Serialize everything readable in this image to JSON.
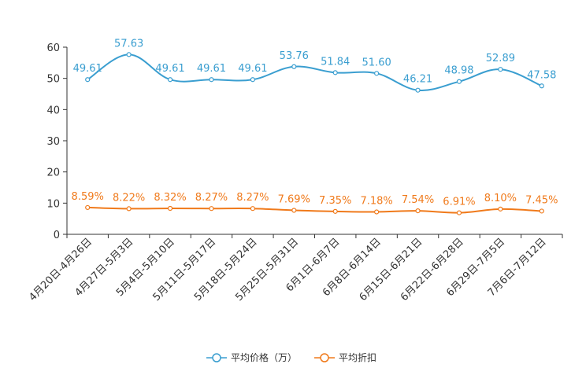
{
  "chart_data": {
    "type": "line",
    "title": "",
    "xlabel": "",
    "ylabel": "",
    "ylim": [
      0,
      60
    ],
    "yticks": [
      0,
      10,
      20,
      30,
      40,
      50,
      60
    ],
    "categories": [
      "4月20日-4月26日",
      "4月27日-5月3日",
      "5月4日-5月10日",
      "5月11日-5月17日",
      "5月18日-5月24日",
      "5月25日-5月31日",
      "6月1日-6月7日",
      "6月8日-6月14日",
      "6月15日-6月21日",
      "6月22日-6月28日",
      "6月29日-7月5日",
      "7月6日-7月12日"
    ],
    "series": [
      {
        "name": "平均价格（万）",
        "color": "#3a9ed0",
        "values": [
          49.61,
          57.63,
          49.61,
          49.61,
          49.61,
          53.76,
          51.84,
          51.6,
          46.21,
          48.98,
          52.89,
          47.58
        ],
        "labels": [
          "49.61",
          "57.63",
          "49.61",
          "49.61",
          "49.61",
          "53.76",
          "51.84",
          "51.60",
          "46.21",
          "48.98",
          "52.89",
          "47.58"
        ]
      },
      {
        "name": "平均折扣",
        "color": "#f07a1b",
        "values": [
          8.59,
          8.22,
          8.32,
          8.27,
          8.27,
          7.69,
          7.35,
          7.18,
          7.54,
          6.91,
          8.1,
          7.45
        ],
        "labels": [
          "8.59%",
          "8.22%",
          "8.32%",
          "8.27%",
          "8.27%",
          "7.69%",
          "7.35%",
          "7.18%",
          "7.54%",
          "6.91%",
          "8.10%",
          "7.45%"
        ]
      }
    ],
    "legend": "bottom-center"
  }
}
